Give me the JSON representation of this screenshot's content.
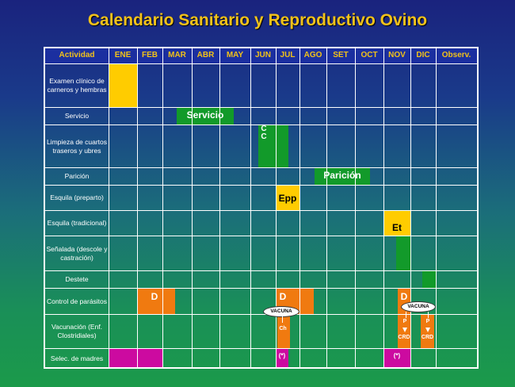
{
  "title": "Calendario Sanitario y Reproductivo Ovino",
  "header": {
    "activity": "Actividad",
    "months": [
      "ENE",
      "FEB",
      "MAR",
      "ABR",
      "MAY",
      "JUN",
      "JUL",
      "AGO",
      "SET",
      "OCT",
      "NOV",
      "DIC"
    ],
    "observ": "Observ."
  },
  "rows": [
    {
      "label": "Examen clínico de carneros y hembras"
    },
    {
      "label": "Servicio"
    },
    {
      "label": "Limpieza de cuartos traseros y ubres"
    },
    {
      "label": "Parición"
    },
    {
      "label": "Esquila (preparto)"
    },
    {
      "label": "Esquila (tradicional)"
    },
    {
      "label": "Señalada (descole y castración)"
    },
    {
      "label": "Destete"
    },
    {
      "label": "Control de parásitos"
    },
    {
      "label": "Vacunación (Enf. Clostridiales)"
    },
    {
      "label": "Selec. de madres"
    }
  ],
  "bars": {
    "servicio": "Servicio",
    "cc": "C C",
    "paricion": "Parición",
    "epp": "Epp",
    "et": "Et",
    "d1": "D",
    "d2": "D",
    "d3": "D",
    "vacuna1": "VACUNA",
    "vacuna2": "VACUNA",
    "ch": "Ch",
    "p1": "P",
    "p2": "P",
    "crd1": "CRD",
    "crd2": "CRD",
    "star1": "(*)",
    "star2": "(*)"
  },
  "colors": {
    "yellow": "#ffcc00",
    "green": "#129a2a",
    "orange": "#f07a10",
    "magenta": "#cc0aa0",
    "header_text": "#f2c21a"
  }
}
